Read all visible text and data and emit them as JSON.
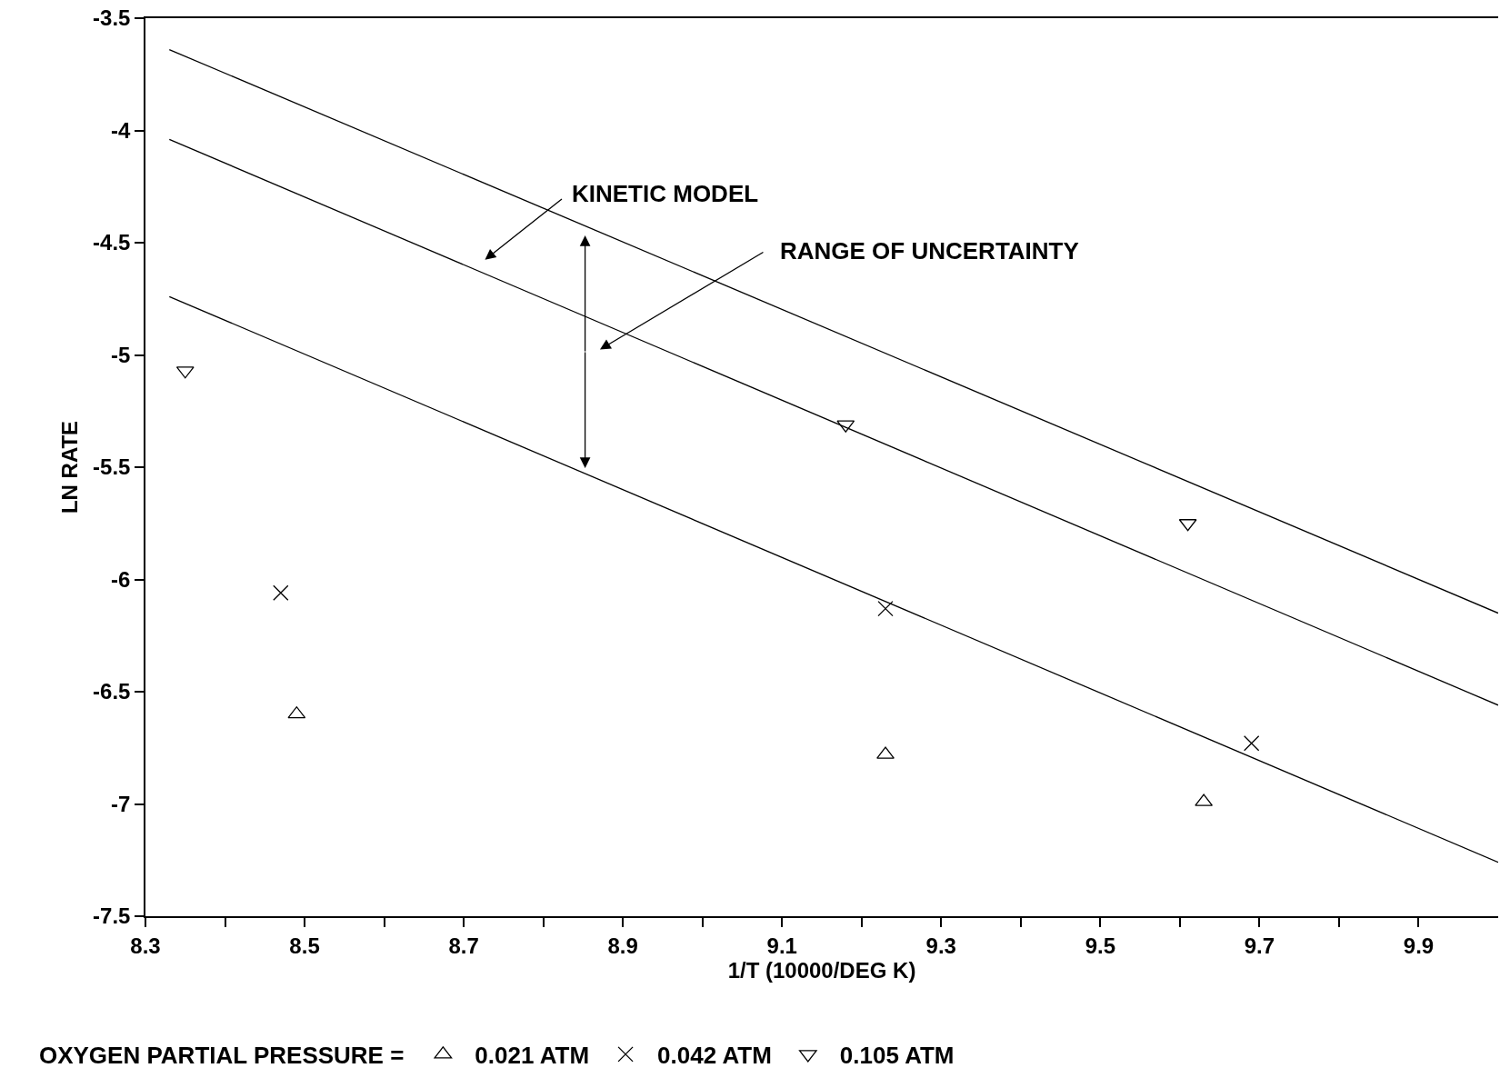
{
  "chart_data": {
    "type": "scatter",
    "xlabel": "1/T (10000/DEG K)",
    "ylabel": "LN RATE",
    "legend_title": "OXYGEN PARTIAL PRESSURE =",
    "legend": "bottom",
    "grid": false,
    "xlim": [
      8.3,
      10.0
    ],
    "ylim": [
      -7.5,
      -3.5
    ],
    "xticks": [
      8.3,
      {
        "value": 8.4,
        "label": null
      },
      8.5,
      {
        "value": 8.6,
        "label": null
      },
      8.7,
      {
        "value": 8.8,
        "label": null
      },
      8.9,
      {
        "value": 9.0,
        "label": null
      },
      9.1,
      {
        "value": 9.2,
        "label": null
      },
      9.3,
      {
        "value": 9.4,
        "label": null
      },
      9.5,
      {
        "value": 9.6,
        "label": null
      },
      9.7,
      {
        "value": 9.8,
        "label": null
      },
      9.9
    ],
    "yticks": [
      -3.5,
      -4,
      -4.5,
      -5,
      -5.5,
      -6,
      -6.5,
      -7,
      -7.5
    ],
    "series": [
      {
        "name": "0.021 ATM",
        "color": "#000000",
        "marker": "triangle",
        "x": [
          8.49,
          9.23,
          9.63
        ],
        "values": [
          -6.6,
          -6.78,
          -6.99
        ]
      },
      {
        "name": "0.042 ATM",
        "color": "#000000",
        "marker": "cross",
        "x": [
          8.47,
          9.23,
          9.69
        ],
        "values": [
          -6.06,
          -6.13,
          -6.73
        ]
      },
      {
        "name": "0.105 ATM",
        "color": "#000000",
        "marker": "triangle-down",
        "x": [
          8.35,
          9.18,
          9.61
        ],
        "values": [
          -5.07,
          -5.31,
          -5.75
        ]
      },
      {
        "type": "line",
        "color": "#000000",
        "line_style": "solid",
        "x": [
          8.33,
          10.0
        ],
        "values": [
          -3.64,
          -6.15
        ]
      },
      {
        "type": "line",
        "color": "#000000",
        "line_style": "solid",
        "x": [
          8.33,
          10.0
        ],
        "values": [
          -4.04,
          -6.56
        ]
      },
      {
        "type": "line",
        "color": "#000000",
        "line_style": "solid",
        "x": [
          8.33,
          10.0
        ],
        "values": [
          -4.74,
          -7.26
        ]
      }
    ],
    "annotations": [
      "KINETIC MODEL",
      "RANGE OF UNCERTAINTY"
    ]
  }
}
